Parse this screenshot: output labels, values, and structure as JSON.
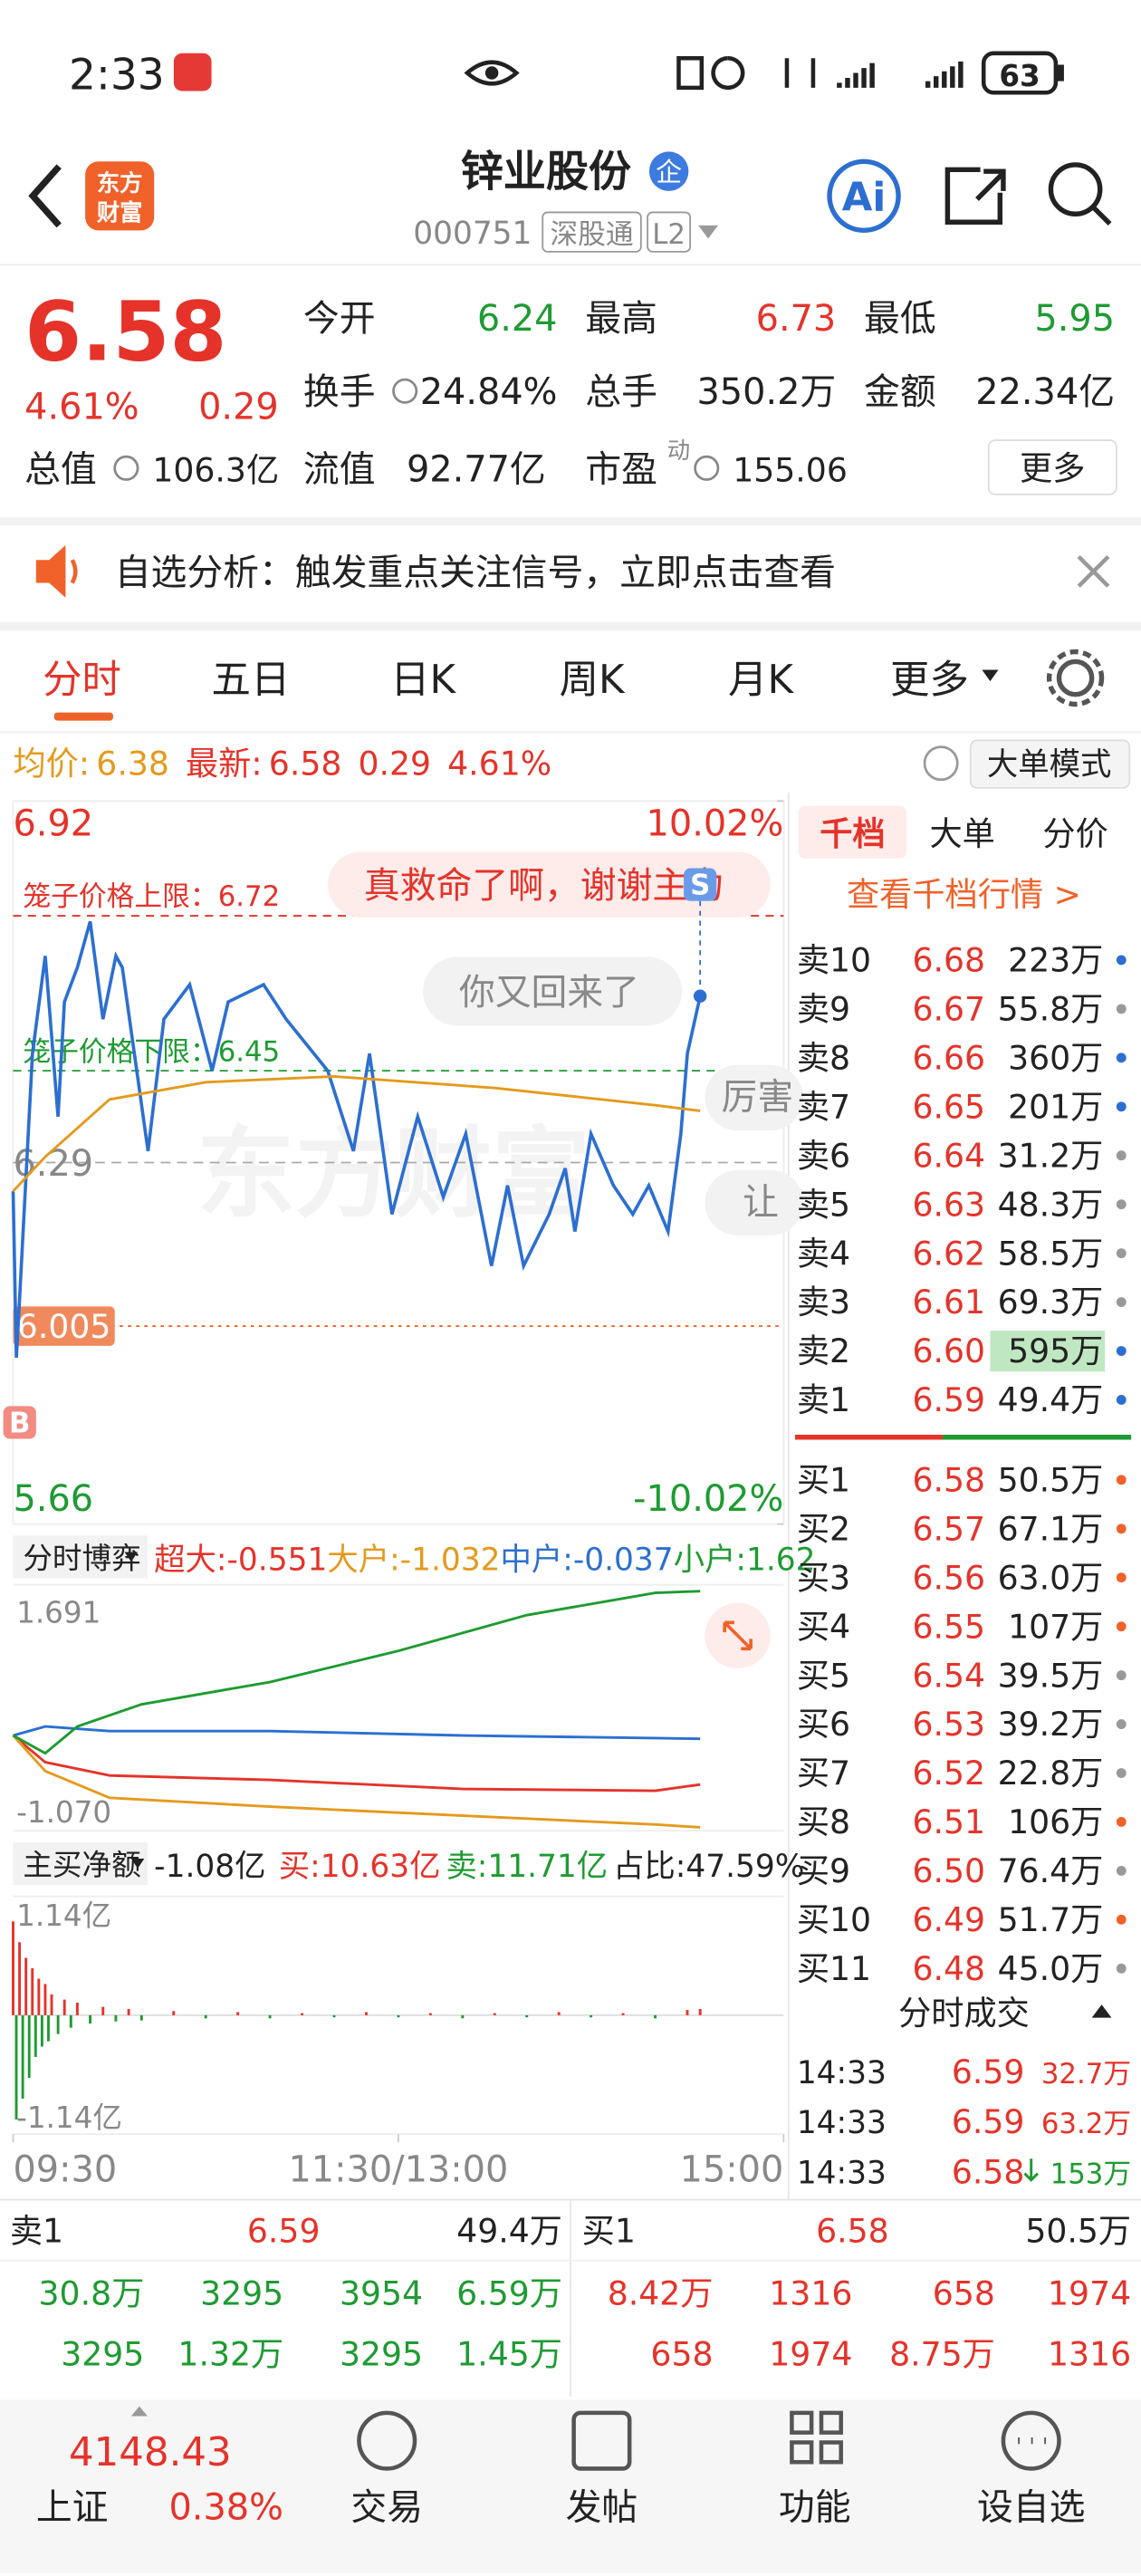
{
  "status_bar": {
    "time": "2:33",
    "battery": "63"
  },
  "header": {
    "logo": [
      "东方",
      "财富"
    ],
    "title": "锌业股份",
    "badge": "企",
    "code": "000751",
    "tags": [
      "深股通",
      "L2"
    ],
    "ai": "Ai"
  },
  "quote": {
    "price": "6.58",
    "percent": "4.61%",
    "change": "0.29",
    "fields": [
      {
        "label": "今开",
        "value": "6.24"
      },
      {
        "label": "最高",
        "value": "6.73"
      },
      {
        "label": "最低",
        "value": "5.95"
      },
      {
        "label": "换手",
        "value": "24.84%"
      },
      {
        "label": "总手",
        "value": "350.2万"
      },
      {
        "label": "金额",
        "value": "22.34亿"
      },
      {
        "label": "总值",
        "value": "106.3亿"
      },
      {
        "label": "流值",
        "value": "92.77亿"
      },
      {
        "label": "市盈",
        "sup": "动",
        "value": "155.06"
      }
    ],
    "more": "更多"
  },
  "banner": {
    "text": "自选分析：触发重点关注信号，立即点击查看"
  },
  "tabs": [
    "分时",
    "五日",
    "日K",
    "周K",
    "月K",
    "更多"
  ],
  "info_bar": {
    "avg_label": "均价:",
    "avg": "6.38",
    "last_label": "最新:",
    "last": "6.58",
    "change": "0.29",
    "percent": "4.61%",
    "button": "大单模式"
  },
  "chart_data": [
    {
      "type": "line",
      "watermark": "东方财富",
      "xlim": [
        0,
        240
      ],
      "ylim": [
        5.66,
        6.92
      ],
      "yticks": [
        5.66,
        6.29,
        6.92
      ],
      "y2lim": [
        -10.02,
        10.02
      ],
      "y2ticks": [
        {
          "value": -10.02,
          "label": "-10.02%"
        },
        {
          "value": 10.02,
          "label": "10.02%"
        }
      ],
      "series": [
        {
          "name": "最新",
          "color": "#2c6fd1",
          "x": [
            0,
            1,
            2,
            6,
            10,
            14,
            16,
            20,
            24,
            28,
            32,
            34,
            42,
            47,
            55,
            62,
            67,
            78,
            85,
            98,
            106,
            111,
            118,
            126,
            134,
            141,
            149,
            154,
            159,
            167,
            172,
            175,
            180,
            187,
            193,
            198,
            204,
            208,
            210,
            214
          ],
          "values": [
            6.24,
            5.95,
            6.05,
            6.48,
            6.65,
            6.37,
            6.57,
            6.63,
            6.71,
            6.54,
            6.65,
            6.63,
            6.31,
            6.54,
            6.6,
            6.45,
            6.57,
            6.6,
            6.54,
            6.45,
            6.31,
            6.48,
            6.2,
            6.37,
            6.23,
            6.34,
            6.11,
            6.25,
            6.11,
            6.2,
            6.28,
            6.17,
            6.34,
            6.25,
            6.2,
            6.25,
            6.17,
            6.34,
            6.48,
            6.58
          ]
        },
        {
          "name": "均价",
          "color": "#e49a1d",
          "x": [
            0,
            10,
            30,
            60,
            100,
            150,
            200,
            214
          ],
          "values": [
            6.24,
            6.3,
            6.4,
            6.43,
            6.44,
            6.42,
            6.39,
            6.38
          ]
        }
      ],
      "reference_lines": [
        {
          "label": "笼子价格上限：",
          "value": 6.72,
          "color": "#e5332a"
        },
        {
          "label": "笼子价格下限：",
          "value": 6.45,
          "color": "#1e9b32"
        }
      ],
      "cursor_value": 6.005,
      "markers": [
        "S",
        "B"
      ],
      "comments": [
        "真救命了啊，谢谢主力",
        "你又回来了",
        "厉害",
        "让"
      ]
    },
    {
      "type": "line",
      "title": "分时博弈",
      "xlim": [
        0,
        240
      ],
      "ylim": [
        -1.07,
        1.691
      ],
      "yticks": [
        {
          "value": -1.07,
          "label": "-1.070"
        },
        1.691
      ],
      "series": [
        {
          "name": "超大:",
          "current": -0.551,
          "color": "#e5332a",
          "x": [
            0,
            10,
            30,
            80,
            140,
            200,
            214
          ],
          "values": [
            0,
            -0.3,
            -0.45,
            -0.5,
            -0.6,
            -0.62,
            -0.551
          ]
        },
        {
          "name": "大户:",
          "current": -1.032,
          "color": "#e49a1d",
          "x": [
            0,
            10,
            30,
            80,
            140,
            200,
            214
          ],
          "values": [
            0,
            -0.4,
            -0.7,
            -0.8,
            -0.9,
            -1.0,
            -1.032
          ]
        },
        {
          "name": "中户:",
          "current": -0.037,
          "color": "#2c6fd1",
          "x": [
            0,
            10,
            30,
            80,
            140,
            200,
            214
          ],
          "values": [
            0,
            0.1,
            0.05,
            0.05,
            0.0,
            -0.03,
            -0.037
          ]
        },
        {
          "name": "小户:",
          "current": 1.62,
          "color": "#1e9b32",
          "x": [
            0,
            10,
            20,
            40,
            80,
            120,
            160,
            200,
            214
          ],
          "values": [
            0,
            -0.2,
            0.1,
            0.35,
            0.6,
            0.95,
            1.35,
            1.6,
            1.62
          ]
        }
      ]
    },
    {
      "type": "bar",
      "title": "主买净额",
      "net": "-1.08亿",
      "buy": "买:10.63亿",
      "sell": "卖:11.71亿",
      "ratio": "占比:47.59%",
      "up_color": "#e5332a",
      "down_color": "#1e9b32",
      "xlim": [
        0,
        240
      ],
      "ylim": [
        -1.14,
        1.14
      ],
      "yticks": [
        {
          "value": -1.14,
          "label": "-1.14亿"
        },
        {
          "value": 1.14,
          "label": "1.14亿"
        }
      ],
      "xticks": [
        {
          "value": 0,
          "label": "09:30"
        },
        {
          "value": 120,
          "label": "11:30/13:00"
        },
        {
          "value": 240,
          "label": "15:00"
        }
      ],
      "x": [
        0,
        1,
        2,
        3,
        4,
        5,
        6,
        7,
        8,
        9,
        10,
        11,
        12,
        14,
        16,
        18,
        20,
        24,
        28,
        32,
        36,
        40,
        50,
        60,
        70,
        80,
        90,
        100,
        110,
        120,
        130,
        140,
        150,
        160,
        170,
        180,
        190,
        200,
        210,
        214
      ],
      "values": [
        0.9,
        -1.0,
        0.7,
        -0.8,
        0.55,
        -0.6,
        0.45,
        -0.4,
        0.35,
        -0.3,
        0.3,
        -0.25,
        0.2,
        -0.18,
        0.15,
        -0.12,
        0.12,
        -0.08,
        0.08,
        -0.06,
        0.06,
        -0.05,
        0.04,
        -0.03,
        0.03,
        -0.03,
        0.02,
        -0.02,
        0.03,
        -0.02,
        0.02,
        -0.03,
        0.02,
        -0.02,
        0.03,
        -0.02,
        0.02,
        -0.03,
        0.05,
        0.06
      ]
    }
  ],
  "order_book": {
    "tabs": [
      "千档",
      "大单",
      "分价"
    ],
    "link": "查看千档行情 >",
    "sells": [
      {
        "label": "卖10",
        "price": "6.68",
        "volume": "223万",
        "dot": "#2c6fd1"
      },
      {
        "label": "卖9",
        "price": "6.67",
        "volume": "55.8万",
        "dot": "#999"
      },
      {
        "label": "卖8",
        "price": "6.66",
        "volume": "360万",
        "dot": "#2c6fd1"
      },
      {
        "label": "卖7",
        "price": "6.65",
        "volume": "201万",
        "dot": "#2c6fd1"
      },
      {
        "label": "卖6",
        "price": "6.64",
        "volume": "31.2万",
        "dot": "#999"
      },
      {
        "label": "卖5",
        "price": "6.63",
        "volume": "48.3万",
        "dot": "#999"
      },
      {
        "label": "卖4",
        "price": "6.62",
        "volume": "58.5万",
        "dot": "#999"
      },
      {
        "label": "卖3",
        "price": "6.61",
        "volume": "69.3万",
        "dot": "#999"
      },
      {
        "label": "卖2",
        "price": "6.60",
        "volume": "595万",
        "dot": "#2c6fd1"
      },
      {
        "label": "卖1",
        "price": "6.59",
        "volume": "49.4万",
        "dot": "#2c6fd1"
      }
    ],
    "buys": [
      {
        "label": "买1",
        "price": "6.58",
        "volume": "50.5万",
        "dot": "#f0622a"
      },
      {
        "label": "买2",
        "price": "6.57",
        "volume": "67.1万",
        "dot": "#f0622a"
      },
      {
        "label": "买3",
        "price": "6.56",
        "volume": "63.0万",
        "dot": "#f0622a"
      },
      {
        "label": "买4",
        "price": "6.55",
        "volume": "107万",
        "dot": "#f0622a"
      },
      {
        "label": "买5",
        "price": "6.54",
        "volume": "39.5万",
        "dot": "#999"
      },
      {
        "label": "买6",
        "price": "6.53",
        "volume": "39.2万",
        "dot": "#999"
      },
      {
        "label": "买7",
        "price": "6.52",
        "volume": "22.8万",
        "dot": "#999"
      },
      {
        "label": "买8",
        "price": "6.51",
        "volume": "106万",
        "dot": "#f0622a"
      },
      {
        "label": "买9",
        "price": "6.50",
        "volume": "76.4万",
        "dot": "#999"
      },
      {
        "label": "买10",
        "price": "6.49",
        "volume": "51.7万",
        "dot": "#f0622a"
      },
      {
        "label": "买11",
        "price": "6.48",
        "volume": "45.0万",
        "dot": "#999"
      }
    ]
  },
  "trades": {
    "title": "分时成交",
    "rows": [
      {
        "time": "14:33",
        "price": "6.59",
        "volume": "32.7万"
      },
      {
        "time": "14:33",
        "price": "6.59",
        "volume": "63.2万"
      },
      {
        "time": "14:33",
        "price": "6.58",
        "volume": "153万"
      }
    ]
  },
  "depth_table": {
    "sell": {
      "label": "卖1",
      "price": "6.59",
      "volume": "49.4万",
      "rows": [
        [
          "30.8万",
          "3295",
          "3954",
          "6.59万"
        ],
        [
          "3295",
          "1.32万",
          "3295",
          "1.45万"
        ]
      ]
    },
    "buy": {
      "label": "买1",
      "price": "6.58",
      "volume": "50.5万",
      "rows": [
        [
          "8.42万",
          "1316",
          "658",
          "1974"
        ],
        [
          "658",
          "1974",
          "8.75万",
          "1316"
        ]
      ]
    }
  },
  "bottom_nav": {
    "index_value": "4148.43",
    "index_name": "上证",
    "index_change": "0.38%",
    "items": [
      "交易",
      "发帖",
      "功能",
      "设自选"
    ]
  }
}
